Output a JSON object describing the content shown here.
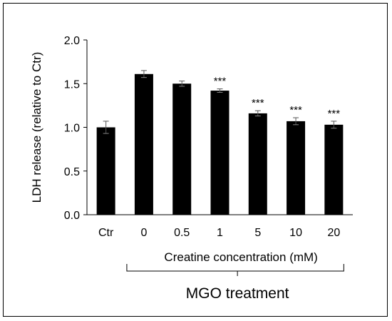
{
  "chart_data": {
    "type": "bar",
    "categories": [
      "Ctr",
      "0",
      "0.5",
      "1",
      "5",
      "10",
      "20"
    ],
    "values": [
      1.0,
      1.61,
      1.5,
      1.42,
      1.16,
      1.07,
      1.03
    ],
    "errors": [
      0.07,
      0.04,
      0.03,
      0.02,
      0.03,
      0.04,
      0.04
    ],
    "annotations": [
      "",
      "",
      "",
      "***",
      "***",
      "***",
      "***"
    ],
    "ylabel": "LDH release (relative to Ctr)",
    "xlabel": "Creatine concentration (mM)",
    "group_label": "MGO treatment",
    "ylim": [
      0,
      2.0
    ],
    "yticks": [
      "0.0",
      "0.5",
      "1.0",
      "1.5",
      "2.0"
    ],
    "bar_color": "#000000",
    "grid": false
  }
}
